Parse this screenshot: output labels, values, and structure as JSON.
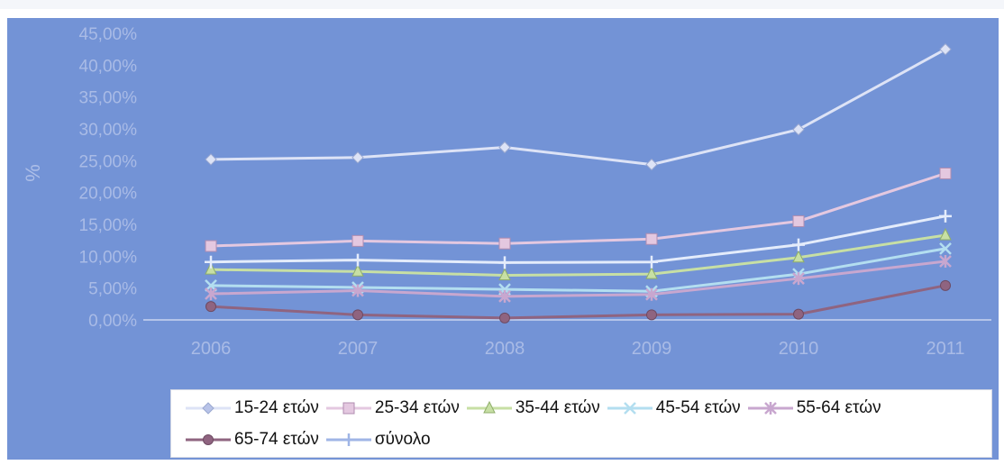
{
  "chart_data": {
    "type": "line",
    "title": "",
    "xlabel": "",
    "ylabel": "%",
    "categories": [
      "2006",
      "2007",
      "2008",
      "2009",
      "2010",
      "2011"
    ],
    "y_ticks": [
      "0,00%",
      "5,00%",
      "10,00%",
      "15,00%",
      "20,00%",
      "25,00%",
      "30,00%",
      "35,00%",
      "40,00%",
      "45,00%"
    ],
    "ylim": [
      0,
      45
    ],
    "grid": false,
    "legend_position": "bottom",
    "series": [
      {
        "name": "15-24 ετών",
        "values": [
          25.2,
          25.5,
          27.1,
          24.4,
          29.9,
          42.5
        ],
        "color": "#dde3f6",
        "marker": "diamond"
      },
      {
        "name": "25-34 ετών",
        "values": [
          11.6,
          12.4,
          12.0,
          12.7,
          15.5,
          23.0
        ],
        "color": "#e4c8e0",
        "marker": "square"
      },
      {
        "name": "35-44 ετών",
        "values": [
          7.9,
          7.6,
          7.0,
          7.2,
          9.8,
          13.3
        ],
        "color": "#c7dfa4",
        "marker": "triangle"
      },
      {
        "name": "45-54 ετών",
        "values": [
          5.4,
          5.1,
          4.8,
          4.5,
          7.2,
          11.2
        ],
        "color": "#b3def0",
        "marker": "x"
      },
      {
        "name": "55-64 ετών",
        "values": [
          4.1,
          4.6,
          3.7,
          4.0,
          6.5,
          9.2
        ],
        "color": "#c8a7cf",
        "marker": "star"
      },
      {
        "name": "65-74 ετών",
        "values": [
          2.1,
          0.8,
          0.3,
          0.8,
          0.9,
          5.4
        ],
        "color": "#8f6480",
        "marker": "circle"
      },
      {
        "name": "σύνολο",
        "values": [
          9.1,
          9.4,
          9.0,
          9.1,
          11.8,
          16.3
        ],
        "color": "#e4ecfb",
        "marker": "plus"
      }
    ]
  }
}
